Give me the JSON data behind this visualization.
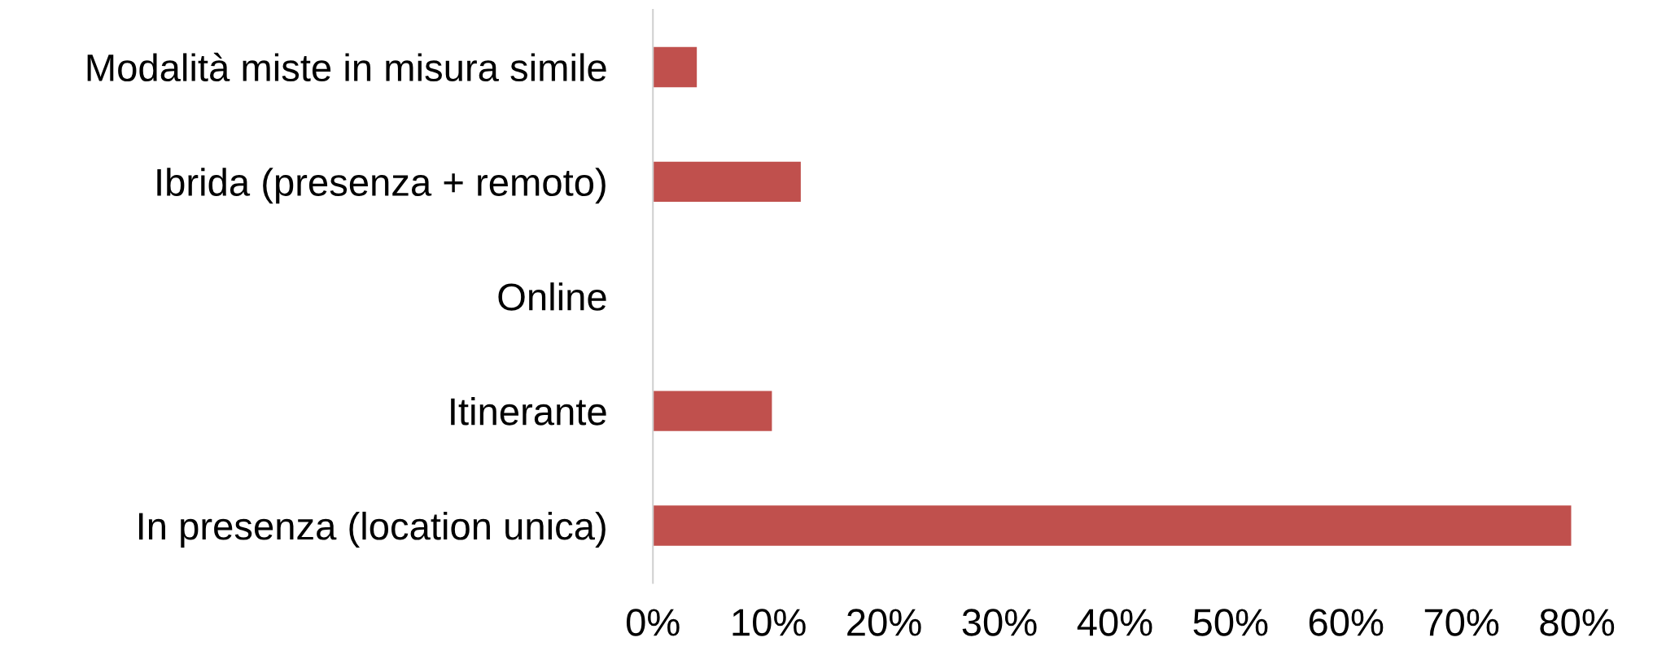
{
  "chart_data": {
    "type": "bar",
    "orientation": "horizontal",
    "categories": [
      "Modalità miste in misura simile",
      "Ibrida (presenza + remoto)",
      "Online",
      "Itinerante",
      "In presenza (location unica)"
    ],
    "values": [
      3.8,
      12.8,
      0,
      10.3,
      79.5
    ],
    "color": "#c0504d",
    "xlim": [
      0,
      80
    ],
    "xticks": [
      {
        "value": 0,
        "label": "0%"
      },
      {
        "value": 10,
        "label": "10%"
      },
      {
        "value": 20,
        "label": "20%"
      },
      {
        "value": 30,
        "label": "30%"
      },
      {
        "value": 40,
        "label": "40%"
      },
      {
        "value": 50,
        "label": "50%"
      },
      {
        "value": 60,
        "label": "60%"
      },
      {
        "value": 70,
        "label": "70%"
      },
      {
        "value": 80,
        "label": "80%"
      }
    ],
    "grid": false,
    "legend": false
  }
}
